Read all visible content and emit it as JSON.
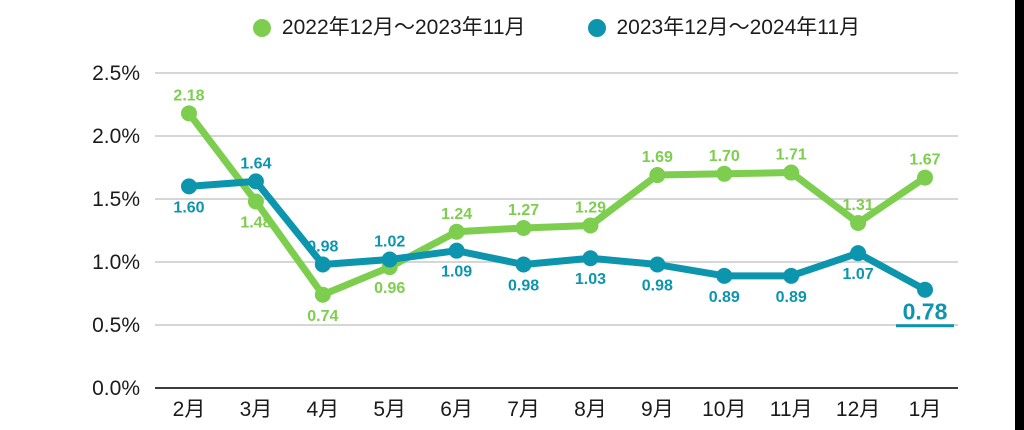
{
  "colors": {
    "series_green": "#7dce4e",
    "series_teal": "#0d95ae",
    "grid": "#d6d6d6",
    "axis": "#3d3d3d",
    "text": "#1b1b1b",
    "edge_bar": "#000000",
    "background": "#ffffff"
  },
  "legend": {
    "items": [
      {
        "label": "2022年12月〜2023年11月",
        "color": "#7dce4e"
      },
      {
        "label": "2023年12月〜2024年11月",
        "color": "#0d95ae"
      }
    ]
  },
  "chart_data": {
    "type": "line",
    "categories": [
      "2月",
      "3月",
      "4月",
      "5月",
      "6月",
      "7月",
      "8月",
      "9月",
      "10月",
      "11月",
      "12月",
      "1月"
    ],
    "series": [
      {
        "name": "2022年12月〜2023年11月",
        "color": "#7dce4e",
        "values": [
          2.18,
          1.48,
          0.74,
          0.96,
          1.24,
          1.27,
          1.29,
          1.69,
          1.7,
          1.71,
          1.31,
          1.67
        ]
      },
      {
        "name": "2023年12月〜2024年11月",
        "color": "#0d95ae",
        "values": [
          1.6,
          1.64,
          0.98,
          1.02,
          1.09,
          0.98,
          1.03,
          0.98,
          0.89,
          0.89,
          1.07,
          0.78
        ]
      }
    ],
    "y_ticks": [
      "0.0%",
      "0.5%",
      "1.0%",
      "1.5%",
      "2.0%",
      "2.5%"
    ],
    "ylim": [
      0,
      2.5
    ],
    "grid": true,
    "legend_position": "top",
    "value_label_decimals": 2,
    "highlight": {
      "series_index": 1,
      "point_index": 11,
      "label": "0.78",
      "style": "bold-underline"
    }
  }
}
